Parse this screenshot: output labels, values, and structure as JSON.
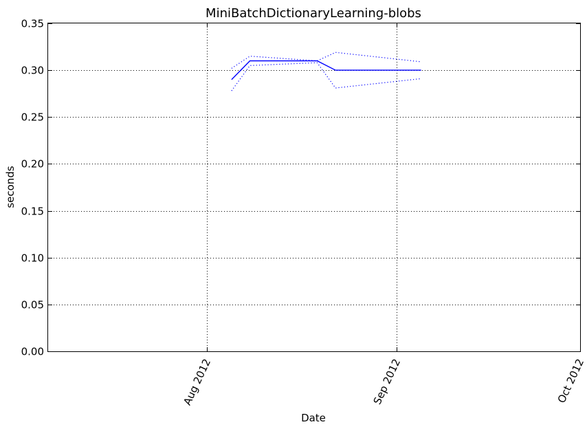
{
  "chart_data": {
    "type": "line",
    "title": "MiniBatchDictionaryLearning-blobs",
    "xlabel": "Date",
    "ylabel": "seconds",
    "xlim": [
      "2012-07-06",
      "2012-10-01"
    ],
    "ylim": [
      0.0,
      0.35
    ],
    "grid": true,
    "grid_style": "dotted",
    "x_tick_labels": [
      "Aug 2012",
      "Sep 2012",
      "Oct 2012"
    ],
    "x_tick_values": [
      "2012-08-01",
      "2012-09-01",
      "2012-10-01"
    ],
    "x_tick_rotation": 65,
    "y_tick_labels": [
      "0.00",
      "0.05",
      "0.10",
      "0.15",
      "0.20",
      "0.25",
      "0.30",
      "0.35"
    ],
    "y_tick_values": [
      0.0,
      0.05,
      0.1,
      0.15,
      0.2,
      0.25,
      0.3,
      0.35
    ],
    "series": [
      {
        "style": "solid",
        "color": "#0000ff",
        "x": [
          "2012-08-05",
          "2012-08-08",
          "2012-08-19",
          "2012-08-22",
          "2012-09-05"
        ],
        "y": [
          0.29,
          0.31,
          0.31,
          0.3,
          0.3
        ]
      },
      {
        "style": "dotted",
        "color": "#0000ff",
        "x": [
          "2012-08-05",
          "2012-08-08",
          "2012-08-19",
          "2012-08-22",
          "2012-09-05"
        ],
        "y": [
          0.302,
          0.315,
          0.31,
          0.319,
          0.309
        ]
      },
      {
        "style": "dotted",
        "color": "#0000ff",
        "x": [
          "2012-08-05",
          "2012-08-08",
          "2012-08-19",
          "2012-08-22",
          "2012-09-05"
        ],
        "y": [
          0.278,
          0.305,
          0.308,
          0.281,
          0.291
        ]
      }
    ]
  }
}
